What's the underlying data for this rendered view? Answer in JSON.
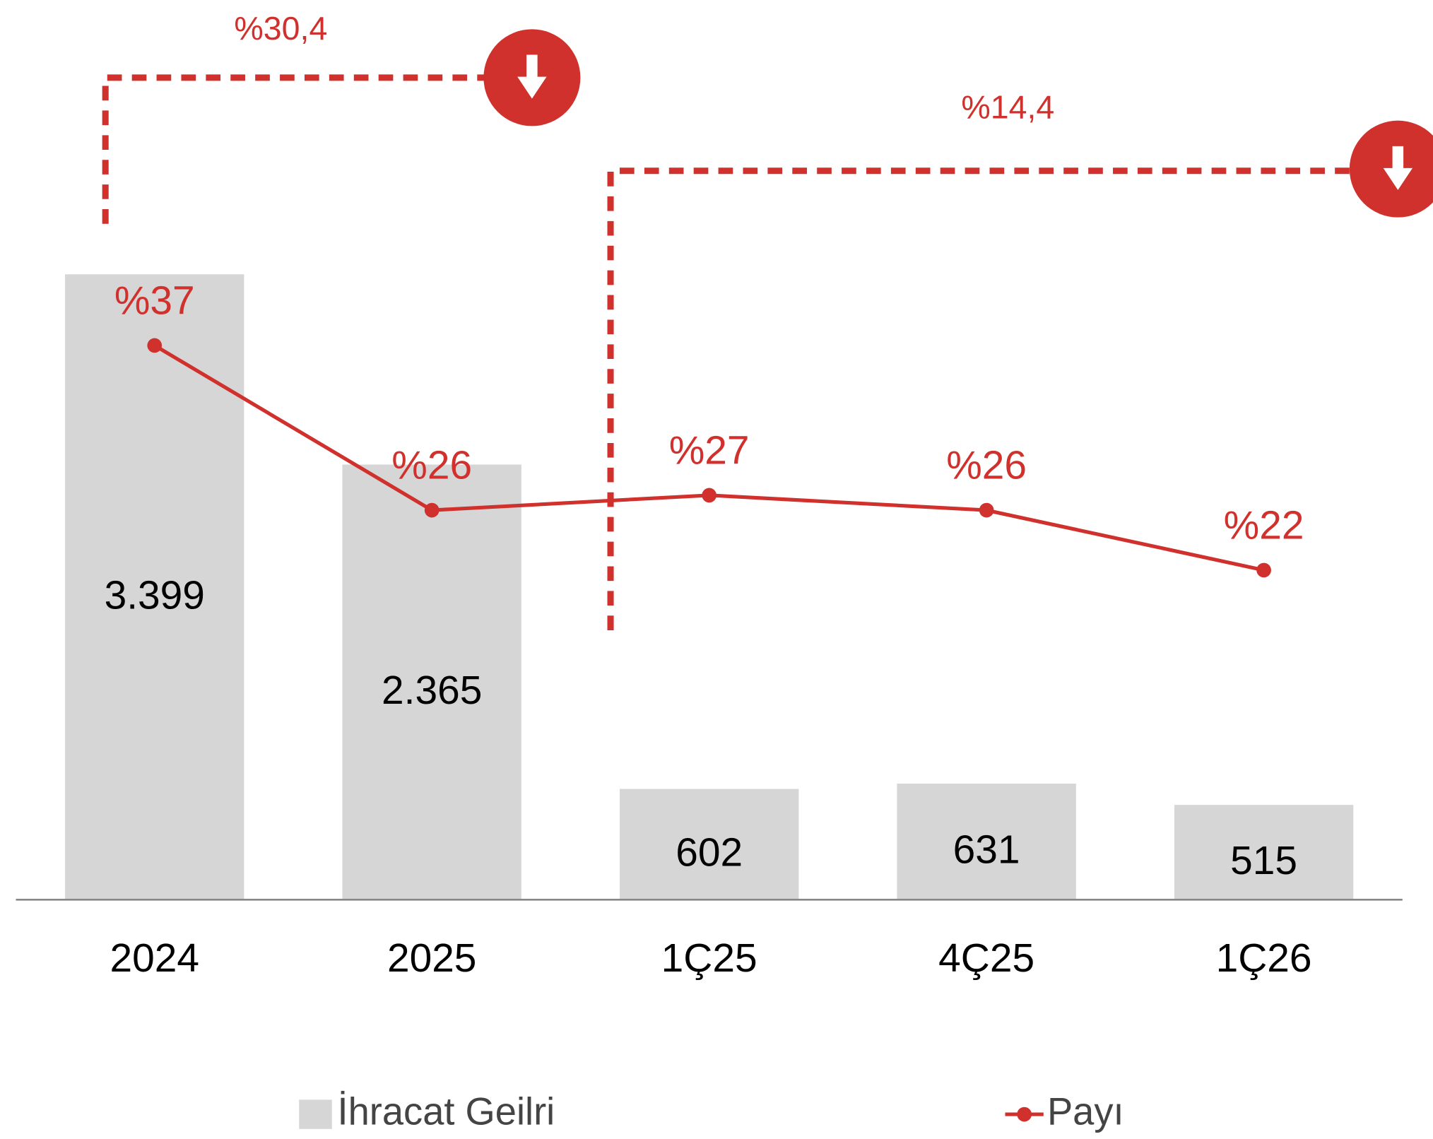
{
  "chart_data": {
    "type": "bar",
    "categories": [
      "2024",
      "2025",
      "1Ç25",
      "4Ç25",
      "1Ç26"
    ],
    "series": [
      {
        "name": "İhracat Geilri",
        "type": "bar",
        "color": "#d6d6d6",
        "values": [
          3399,
          2365,
          602,
          631,
          515
        ],
        "value_labels": [
          "3.399",
          "2.365",
          "602",
          "631",
          "515"
        ]
      },
      {
        "name": "Payı",
        "type": "line",
        "axis": "y2",
        "color": "#d0312d",
        "values": [
          37,
          26,
          27,
          26,
          22
        ],
        "value_labels": [
          "%37",
          "%26",
          "%27",
          "%26",
          "%22"
        ]
      }
    ],
    "ylim": [
      0,
      3500
    ],
    "y2lim": [
      0,
      45
    ],
    "annotations": [
      {
        "text": "%30,4"
      },
      {
        "text": "%14,4"
      }
    ]
  }
}
